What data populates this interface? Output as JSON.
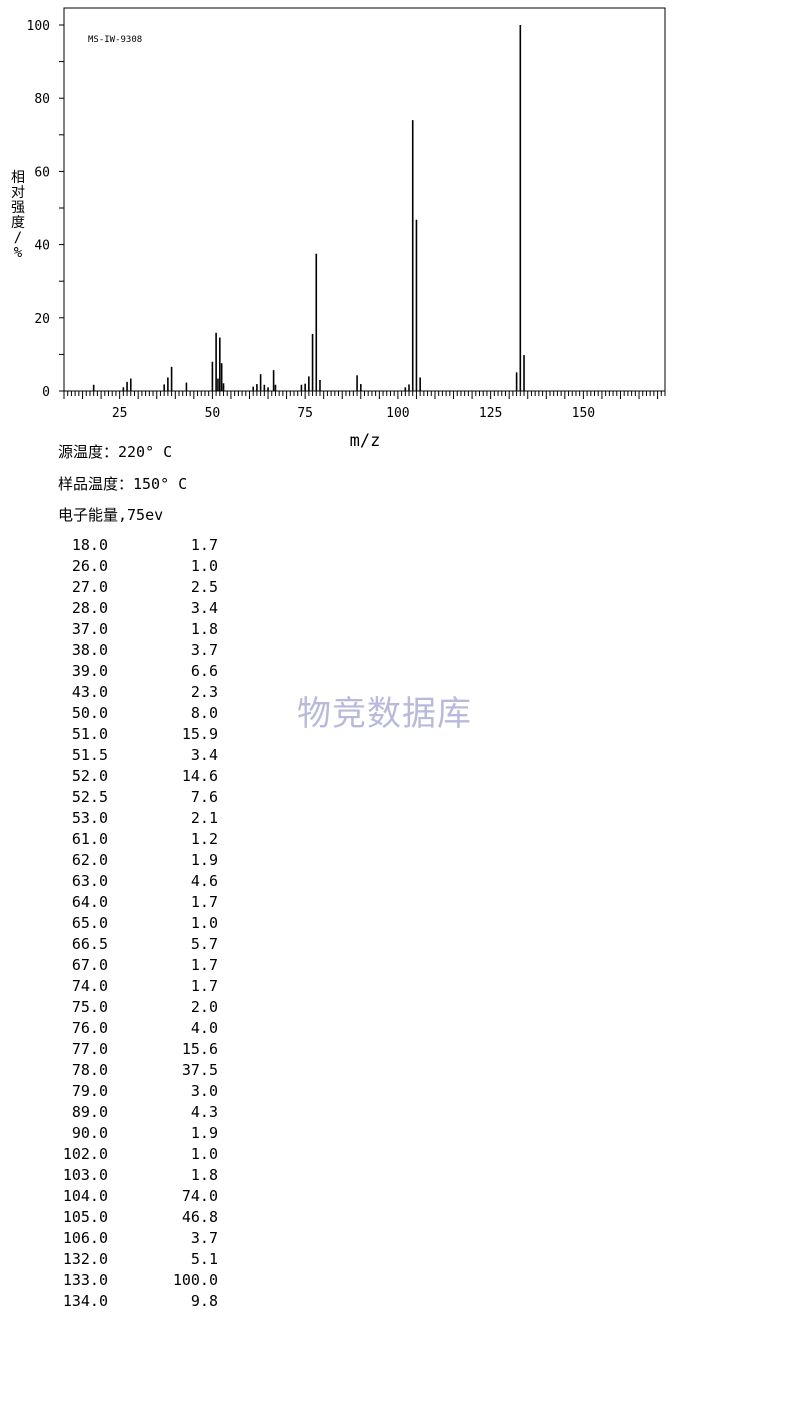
{
  "chart_data": {
    "type": "bar",
    "spectrum_id": "MS-IW-9308",
    "xlabel": "m/z",
    "ylabel": "相对强度/%",
    "xlim": [
      10,
      172
    ],
    "ylim": [
      0,
      100
    ],
    "x_ticks": [
      25,
      50,
      75,
      100,
      125,
      150
    ],
    "y_ticks": [
      0,
      20,
      40,
      60,
      80,
      100
    ],
    "peaks": [
      {
        "mz": 18.0,
        "intensity": 1.7
      },
      {
        "mz": 26.0,
        "intensity": 1.0
      },
      {
        "mz": 27.0,
        "intensity": 2.5
      },
      {
        "mz": 28.0,
        "intensity": 3.4
      },
      {
        "mz": 37.0,
        "intensity": 1.8
      },
      {
        "mz": 38.0,
        "intensity": 3.7
      },
      {
        "mz": 39.0,
        "intensity": 6.6
      },
      {
        "mz": 43.0,
        "intensity": 2.3
      },
      {
        "mz": 50.0,
        "intensity": 8.0
      },
      {
        "mz": 51.0,
        "intensity": 15.9
      },
      {
        "mz": 51.5,
        "intensity": 3.4
      },
      {
        "mz": 52.0,
        "intensity": 14.6
      },
      {
        "mz": 52.5,
        "intensity": 7.6
      },
      {
        "mz": 53.0,
        "intensity": 2.1
      },
      {
        "mz": 61.0,
        "intensity": 1.2
      },
      {
        "mz": 62.0,
        "intensity": 1.9
      },
      {
        "mz": 63.0,
        "intensity": 4.6
      },
      {
        "mz": 64.0,
        "intensity": 1.7
      },
      {
        "mz": 65.0,
        "intensity": 1.0
      },
      {
        "mz": 66.5,
        "intensity": 5.7
      },
      {
        "mz": 67.0,
        "intensity": 1.7
      },
      {
        "mz": 74.0,
        "intensity": 1.7
      },
      {
        "mz": 75.0,
        "intensity": 2.0
      },
      {
        "mz": 76.0,
        "intensity": 4.0
      },
      {
        "mz": 77.0,
        "intensity": 15.6
      },
      {
        "mz": 78.0,
        "intensity": 37.5
      },
      {
        "mz": 79.0,
        "intensity": 3.0
      },
      {
        "mz": 89.0,
        "intensity": 4.3
      },
      {
        "mz": 90.0,
        "intensity": 1.9
      },
      {
        "mz": 102.0,
        "intensity": 1.0
      },
      {
        "mz": 103.0,
        "intensity": 1.8
      },
      {
        "mz": 104.0,
        "intensity": 74.0
      },
      {
        "mz": 105.0,
        "intensity": 46.8
      },
      {
        "mz": 106.0,
        "intensity": 3.7
      },
      {
        "mz": 132.0,
        "intensity": 5.1
      },
      {
        "mz": 133.0,
        "intensity": 100.0
      },
      {
        "mz": 134.0,
        "intensity": 9.8
      }
    ]
  },
  "conditions": {
    "source_temp": "源温度：220° C",
    "sample_temp": "样品温度：150° C",
    "electron_energy": "电子能量,75ev"
  },
  "peak_table": [
    [
      "18.0",
      "1.7"
    ],
    [
      "26.0",
      "1.0"
    ],
    [
      "27.0",
      "2.5"
    ],
    [
      "28.0",
      "3.4"
    ],
    [
      "37.0",
      "1.8"
    ],
    [
      "38.0",
      "3.7"
    ],
    [
      "39.0",
      "6.6"
    ],
    [
      "43.0",
      "2.3"
    ],
    [
      "50.0",
      "8.0"
    ],
    [
      "51.0",
      "15.9"
    ],
    [
      "51.5",
      "3.4"
    ],
    [
      "52.0",
      "14.6"
    ],
    [
      "52.5",
      "7.6"
    ],
    [
      "53.0",
      "2.1"
    ],
    [
      "61.0",
      "1.2"
    ],
    [
      "62.0",
      "1.9"
    ],
    [
      "63.0",
      "4.6"
    ],
    [
      "64.0",
      "1.7"
    ],
    [
      "65.0",
      "1.0"
    ],
    [
      "66.5",
      "5.7"
    ],
    [
      "67.0",
      "1.7"
    ],
    [
      "74.0",
      "1.7"
    ],
    [
      "75.0",
      "2.0"
    ],
    [
      "76.0",
      "4.0"
    ],
    [
      "77.0",
      "15.6"
    ],
    [
      "78.0",
      "37.5"
    ],
    [
      "79.0",
      "3.0"
    ],
    [
      "89.0",
      "4.3"
    ],
    [
      "90.0",
      "1.9"
    ],
    [
      "102.0",
      "1.0"
    ],
    [
      "103.0",
      "1.8"
    ],
    [
      "104.0",
      "74.0"
    ],
    [
      "105.0",
      "46.8"
    ],
    [
      "106.0",
      "3.7"
    ],
    [
      "132.0",
      "5.1"
    ],
    [
      "133.0",
      "100.0"
    ],
    [
      "134.0",
      "9.8"
    ]
  ],
  "watermark": "物竞数据库"
}
